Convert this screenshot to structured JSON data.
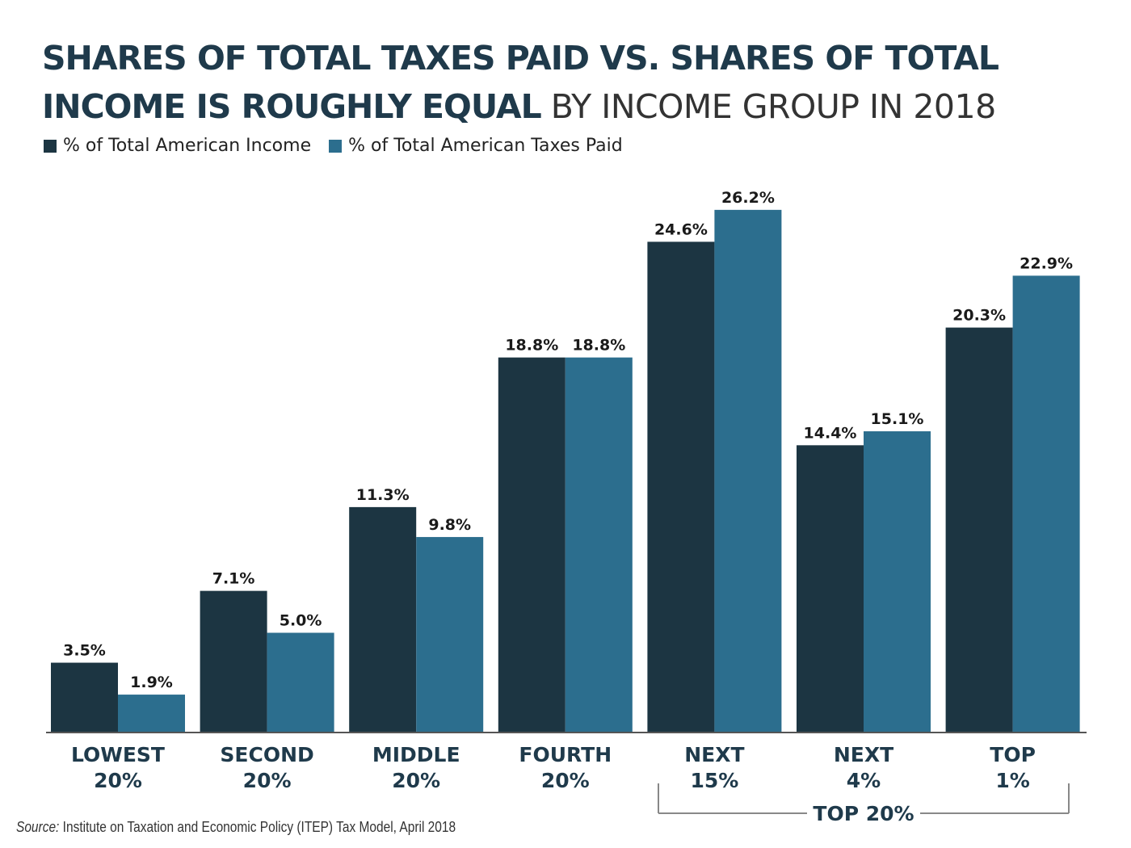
{
  "title": {
    "line1": "SHARES OF TOTAL TAXES PAID VS. SHARES OF TOTAL",
    "line2": "INCOME IS ROUGHLY EQUAL",
    "subtitle": "BY INCOME GROUP IN 2018"
  },
  "source": {
    "prefix": "Source:",
    "text": "Institute on Taxation and Economic Policy (ITEP) Tax Model, April 2018"
  },
  "colors": {
    "income": "#1c3542",
    "taxes": "#2c6e8e",
    "axis": "#555555",
    "bracket": "#888888"
  },
  "chart_data": {
    "type": "bar",
    "title": "SHARES OF TOTAL TAXES PAID VS. SHARES OF TOTAL INCOME IS ROUGHLY EQUAL",
    "subtitle": "BY INCOME GROUP IN 2018",
    "xlabel": "",
    "ylabel": "",
    "ylim": [
      0,
      28
    ],
    "grid": false,
    "legend_position": "top-left",
    "categories": [
      [
        "LOWEST",
        "20%"
      ],
      [
        "SECOND",
        "20%"
      ],
      [
        "MIDDLE",
        "20%"
      ],
      [
        "FOURTH",
        "20%"
      ],
      [
        "NEXT",
        "15%"
      ],
      [
        "NEXT",
        "4%"
      ],
      [
        "TOP",
        "1%"
      ]
    ],
    "series": [
      {
        "name": "% of Total American Income",
        "values": [
          3.5,
          7.1,
          11.3,
          18.8,
          24.6,
          14.4,
          20.3
        ],
        "labels": [
          "3.5%",
          "7.1%",
          "11.3%",
          "18.8%",
          "24.6%",
          "14.4%",
          "20.3%"
        ]
      },
      {
        "name": "% of Total American Taxes Paid",
        "values": [
          1.9,
          5.0,
          9.8,
          18.8,
          26.2,
          15.1,
          22.9
        ],
        "labels": [
          "1.9%",
          "5.0%",
          "9.8%",
          "18.8%",
          "26.2%",
          "15.1%",
          "22.9%"
        ]
      }
    ],
    "annotations": [
      {
        "text": "TOP 20%",
        "spans_categories": [
          4,
          6
        ]
      }
    ]
  }
}
